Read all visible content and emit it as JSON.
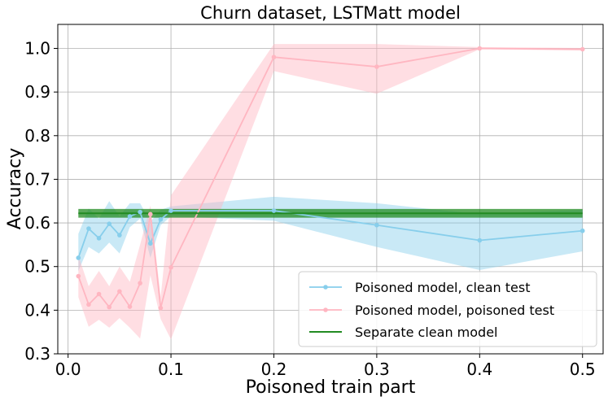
{
  "chart_data": {
    "type": "line",
    "title": "Churn dataset, LSTMatt model",
    "xlabel": "Poisoned train part",
    "ylabel": "Accuracy",
    "xlim": [
      -0.01,
      0.52
    ],
    "ylim": [
      0.3,
      1.055
    ],
    "xticks": [
      "0.0",
      "0.1",
      "0.2",
      "0.3",
      "0.4",
      "0.5"
    ],
    "yticks": [
      "0.3",
      "0.4",
      "0.5",
      "0.6",
      "0.7",
      "0.8",
      "0.9",
      "1.0"
    ],
    "grid": true,
    "legend_position": "lower-right",
    "series": [
      {
        "name": "Poisoned model, clean test",
        "color": "#87CEEB",
        "marker": true,
        "x": [
          0.01,
          0.02,
          0.03,
          0.04,
          0.05,
          0.06,
          0.07,
          0.08,
          0.09,
          0.1,
          0.2,
          0.3,
          0.4,
          0.5
        ],
        "y": [
          0.52,
          0.587,
          0.565,
          0.598,
          0.572,
          0.615,
          0.625,
          0.553,
          0.608,
          0.628,
          0.628,
          0.595,
          0.56,
          0.582
        ],
        "lower": [
          0.49,
          0.545,
          0.53,
          0.555,
          0.53,
          0.59,
          0.61,
          0.52,
          0.595,
          0.615,
          0.605,
          0.545,
          0.492,
          0.535
        ],
        "upper": [
          0.575,
          0.633,
          0.61,
          0.65,
          0.615,
          0.645,
          0.645,
          0.603,
          0.63,
          0.638,
          0.66,
          0.645,
          0.62,
          0.63
        ]
      },
      {
        "name": "Poisoned model, poisoned test",
        "color": "#FFB6C1",
        "marker": true,
        "x": [
          0.01,
          0.02,
          0.03,
          0.04,
          0.05,
          0.06,
          0.07,
          0.08,
          0.09,
          0.1,
          0.2,
          0.3,
          0.4,
          0.5
        ],
        "y": [
          0.478,
          0.413,
          0.437,
          0.407,
          0.443,
          0.408,
          0.462,
          0.62,
          0.405,
          0.498,
          0.98,
          0.958,
          1.0,
          0.998
        ],
        "lower": [
          0.43,
          0.362,
          0.378,
          0.36,
          0.382,
          0.36,
          0.335,
          0.48,
          0.38,
          0.333,
          0.948,
          0.896,
          0.998,
          0.995
        ],
        "upper": [
          0.525,
          0.455,
          0.49,
          0.455,
          0.5,
          0.465,
          0.55,
          0.64,
          0.43,
          0.663,
          1.01,
          1.01,
          1.003,
          1.001
        ]
      },
      {
        "name": "Separate clean model",
        "color": "#228B22",
        "marker": false,
        "x": [
          0.01,
          0.5
        ],
        "y": [
          0.622,
          0.622
        ],
        "lower": [
          0.612,
          0.612
        ],
        "upper": [
          0.632,
          0.632
        ]
      }
    ]
  }
}
